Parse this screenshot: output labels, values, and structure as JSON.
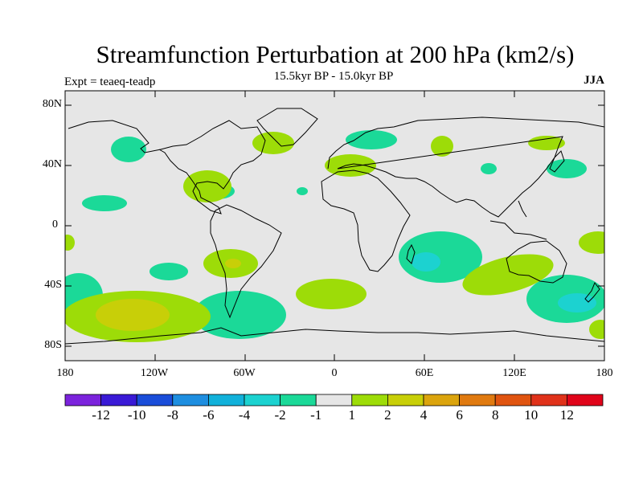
{
  "title": "Streamfunction Perturbation at 200 hPa (km2/s)",
  "subtitle": "15.5kyr BP - 15.0kyr BP",
  "left_label": "Expt = teaeq-teadp",
  "right_label": "JJA",
  "lat_labels": [
    "80N",
    "40N",
    "0",
    "40S",
    "80S"
  ],
  "lon_labels": [
    "180",
    "120W",
    "60W",
    "0",
    "60E",
    "120E",
    "180"
  ],
  "colorbar": {
    "labels": [
      "-12",
      "-10",
      "-8",
      "-6",
      "-4",
      "-2",
      "-1",
      "1",
      "2",
      "4",
      "6",
      "8",
      "10",
      "12"
    ],
    "colors": [
      "#7b23dc",
      "#3a1ad6",
      "#1a4dd9",
      "#1e8ee0",
      "#11b1da",
      "#1cd2d0",
      "#1bd998",
      "#e6e6e6",
      "#9ddc08",
      "#c8cf08",
      "#dba40d",
      "#e07a10",
      "#e05410",
      "#e0321a",
      "#e0041a"
    ]
  },
  "map": {
    "background": "#e6e6e6",
    "lon_range": [
      -180,
      180
    ],
    "lat_range": [
      -90,
      90
    ]
  }
}
